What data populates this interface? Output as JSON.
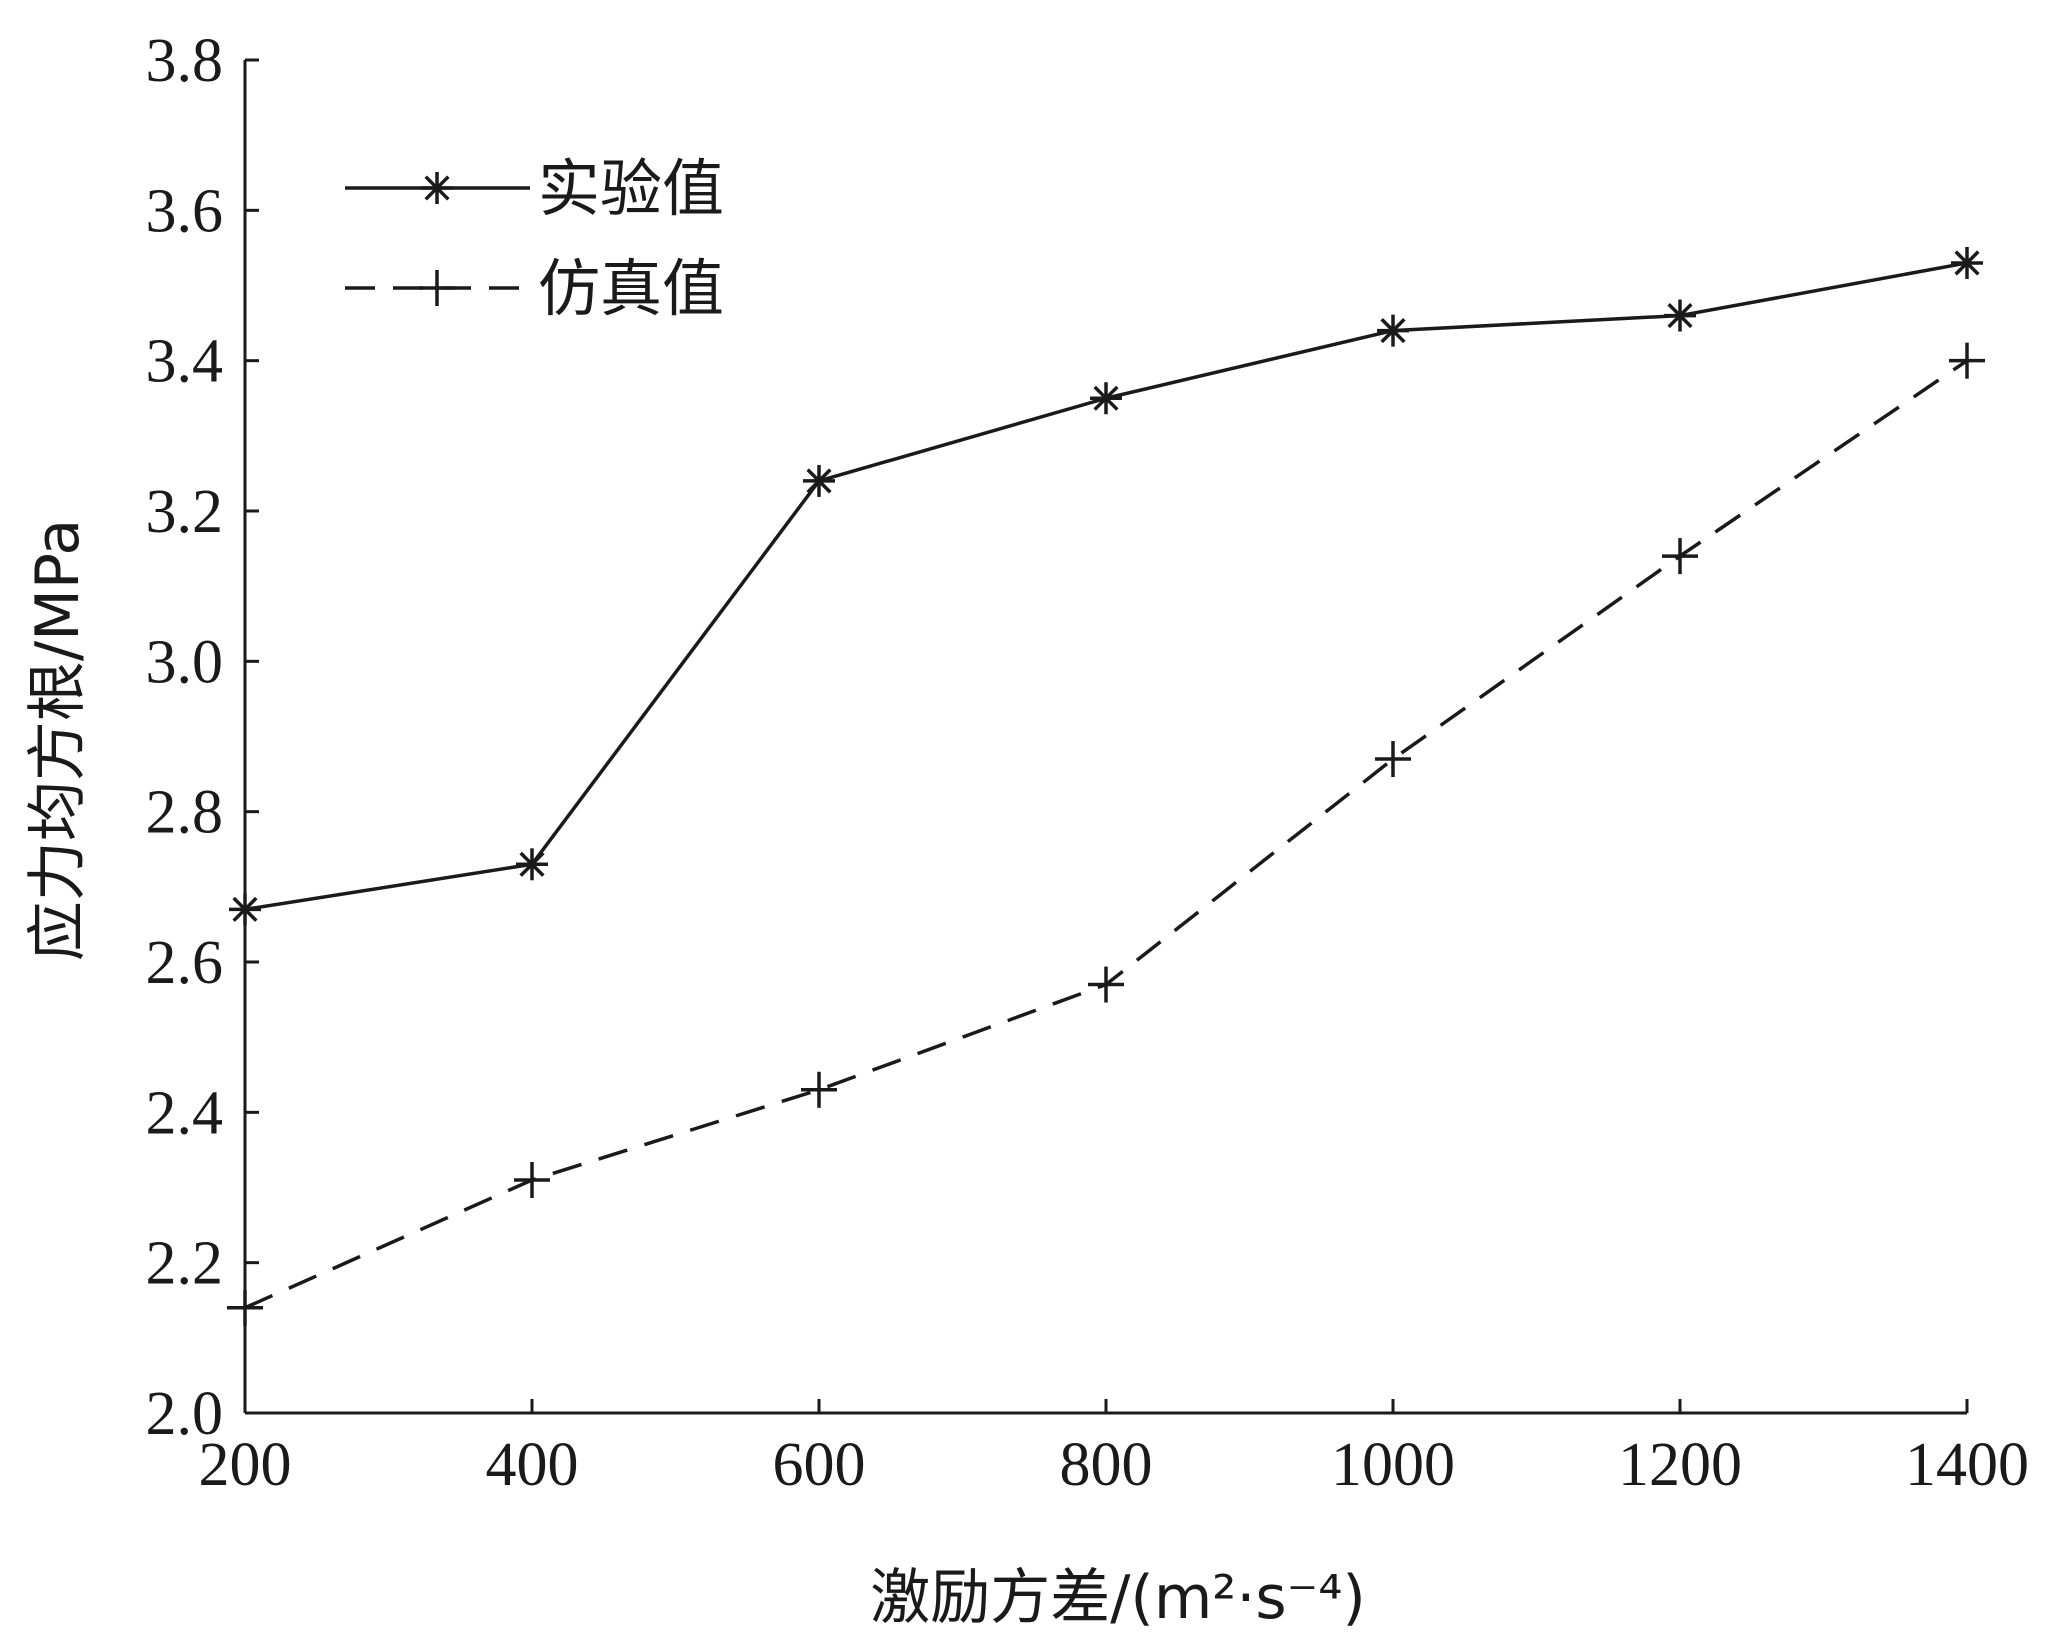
{
  "chart_data": {
    "type": "line",
    "xlabel": "激励方差/(m²·s⁻⁴)",
    "ylabel": "应力均方根/MPa",
    "x": [
      200,
      400,
      600,
      800,
      1000,
      1200,
      1400
    ],
    "xlim": [
      200,
      1400
    ],
    "ylim": [
      2.0,
      3.8
    ],
    "xticks": [
      "200",
      "400",
      "600",
      "800",
      "1000",
      "1200",
      "1400"
    ],
    "yticks": [
      "2.0",
      "2.2",
      "2.4",
      "2.6",
      "2.8",
      "3.0",
      "3.2",
      "3.4",
      "3.6",
      "3.8"
    ],
    "grid": false,
    "legend_position": "top-left",
    "series": [
      {
        "name": "实验值",
        "line_style": "solid",
        "marker": "asterisk",
        "color": "#1a1a1a",
        "values": [
          2.67,
          2.73,
          3.24,
          3.35,
          3.44,
          3.46,
          3.53
        ]
      },
      {
        "name": "仿真值",
        "line_style": "dashed",
        "marker": "plus",
        "color": "#1a1a1a",
        "values": [
          2.14,
          2.31,
          2.43,
          2.57,
          2.87,
          3.14,
          3.4
        ]
      }
    ]
  }
}
